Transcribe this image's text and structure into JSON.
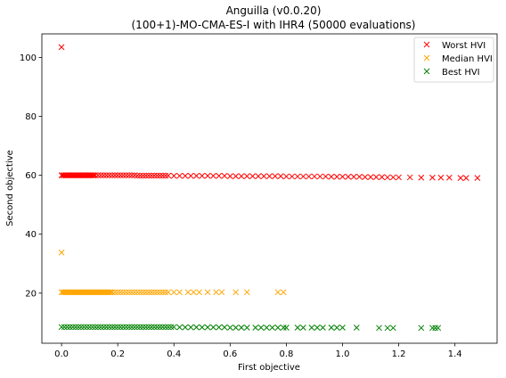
{
  "chart_data": {
    "type": "scatter",
    "title": "Anguilla (v0.0.20)",
    "subtitle": "(100+1)-MO-CMA-ES-I with IHR4 (50000 evaluations)",
    "xlabel": "First objective",
    "ylabel": "Second objective",
    "xlim": [
      -0.07,
      1.55
    ],
    "ylim": [
      3,
      108
    ],
    "xticks": [
      "0.0",
      "0.2",
      "0.4",
      "0.6",
      "0.8",
      "1.0",
      "1.2",
      "1.4"
    ],
    "yticks": [
      "20",
      "40",
      "60",
      "80",
      "100"
    ],
    "grid": false,
    "legend_position": "top-right",
    "marker": "x",
    "series": [
      {
        "name": "Worst HVI",
        "color": "#ff0000",
        "x": [
          0.0,
          0.0,
          0.005,
          0.01,
          0.015,
          0.02,
          0.025,
          0.03,
          0.035,
          0.04,
          0.045,
          0.05,
          0.055,
          0.06,
          0.065,
          0.07,
          0.075,
          0.08,
          0.085,
          0.09,
          0.095,
          0.1,
          0.105,
          0.11,
          0.115,
          0.12,
          0.13,
          0.14,
          0.15,
          0.16,
          0.17,
          0.18,
          0.19,
          0.2,
          0.21,
          0.22,
          0.23,
          0.24,
          0.25,
          0.26,
          0.27,
          0.28,
          0.29,
          0.3,
          0.31,
          0.32,
          0.33,
          0.34,
          0.35,
          0.36,
          0.37,
          0.38,
          0.4,
          0.42,
          0.44,
          0.46,
          0.48,
          0.5,
          0.52,
          0.54,
          0.56,
          0.58,
          0.6,
          0.62,
          0.64,
          0.66,
          0.68,
          0.7,
          0.72,
          0.74,
          0.76,
          0.78,
          0.8,
          0.82,
          0.84,
          0.86,
          0.88,
          0.9,
          0.92,
          0.94,
          0.96,
          0.98,
          1.0,
          1.02,
          1.04,
          1.06,
          1.08,
          1.1,
          1.12,
          1.14,
          1.16,
          1.18,
          1.2,
          1.24,
          1.28,
          1.32,
          1.35,
          1.38,
          1.42,
          1.44,
          1.48
        ],
        "y": [
          103.5,
          60.0,
          60.0,
          60.0,
          60.0,
          60.0,
          60.0,
          60.0,
          60.0,
          60.0,
          60.0,
          60.0,
          60.0,
          60.0,
          60.0,
          60.0,
          60.0,
          60.0,
          60.0,
          60.0,
          60.0,
          60.0,
          60.0,
          60.0,
          60.0,
          60.0,
          60.0,
          60.0,
          60.0,
          60.0,
          60.0,
          60.0,
          60.0,
          60.0,
          60.0,
          60.0,
          60.0,
          60.0,
          60.0,
          60.0,
          59.9,
          59.9,
          59.9,
          59.9,
          59.9,
          59.9,
          59.9,
          59.9,
          59.9,
          59.9,
          59.9,
          59.9,
          59.8,
          59.8,
          59.8,
          59.8,
          59.8,
          59.8,
          59.8,
          59.8,
          59.8,
          59.8,
          59.7,
          59.7,
          59.7,
          59.7,
          59.7,
          59.7,
          59.7,
          59.7,
          59.7,
          59.7,
          59.6,
          59.6,
          59.6,
          59.6,
          59.6,
          59.6,
          59.6,
          59.6,
          59.5,
          59.5,
          59.5,
          59.5,
          59.5,
          59.5,
          59.4,
          59.4,
          59.4,
          59.4,
          59.3,
          59.3,
          59.3,
          59.3,
          59.2,
          59.2,
          59.2,
          59.2,
          59.1,
          59.1,
          59.1
        ]
      },
      {
        "name": "Median HVI",
        "color": "#ffa500",
        "x": [
          0.0,
          0.0,
          0.005,
          0.01,
          0.015,
          0.02,
          0.025,
          0.03,
          0.035,
          0.04,
          0.045,
          0.05,
          0.055,
          0.06,
          0.065,
          0.07,
          0.075,
          0.08,
          0.085,
          0.09,
          0.095,
          0.1,
          0.105,
          0.11,
          0.115,
          0.12,
          0.125,
          0.13,
          0.135,
          0.14,
          0.145,
          0.15,
          0.155,
          0.16,
          0.165,
          0.17,
          0.175,
          0.18,
          0.19,
          0.2,
          0.21,
          0.22,
          0.23,
          0.24,
          0.25,
          0.26,
          0.27,
          0.28,
          0.29,
          0.3,
          0.31,
          0.32,
          0.33,
          0.34,
          0.35,
          0.36,
          0.37,
          0.38,
          0.4,
          0.42,
          0.45,
          0.47,
          0.49,
          0.52,
          0.55,
          0.57,
          0.62,
          0.66,
          0.77,
          0.79
        ],
        "y": [
          33.8,
          20.3,
          20.3,
          20.3,
          20.3,
          20.3,
          20.3,
          20.3,
          20.3,
          20.3,
          20.3,
          20.3,
          20.3,
          20.3,
          20.3,
          20.3,
          20.3,
          20.3,
          20.3,
          20.3,
          20.3,
          20.3,
          20.3,
          20.3,
          20.3,
          20.3,
          20.3,
          20.3,
          20.3,
          20.3,
          20.3,
          20.3,
          20.3,
          20.3,
          20.3,
          20.3,
          20.3,
          20.3,
          20.3,
          20.3,
          20.3,
          20.3,
          20.3,
          20.3,
          20.3,
          20.3,
          20.3,
          20.3,
          20.3,
          20.3,
          20.3,
          20.3,
          20.3,
          20.3,
          20.3,
          20.3,
          20.3,
          20.3,
          20.3,
          20.3,
          20.3,
          20.3,
          20.3,
          20.3,
          20.3,
          20.3,
          20.3,
          20.3,
          20.3,
          20.3
        ]
      },
      {
        "name": "Best HVI",
        "color": "#008000",
        "x": [
          0.0,
          0.01,
          0.02,
          0.03,
          0.04,
          0.05,
          0.06,
          0.07,
          0.08,
          0.09,
          0.1,
          0.11,
          0.12,
          0.13,
          0.14,
          0.15,
          0.16,
          0.17,
          0.18,
          0.19,
          0.2,
          0.21,
          0.22,
          0.23,
          0.24,
          0.25,
          0.26,
          0.27,
          0.28,
          0.29,
          0.3,
          0.31,
          0.32,
          0.33,
          0.34,
          0.35,
          0.36,
          0.37,
          0.38,
          0.39,
          0.4,
          0.42,
          0.44,
          0.46,
          0.48,
          0.5,
          0.52,
          0.54,
          0.56,
          0.58,
          0.6,
          0.62,
          0.64,
          0.66,
          0.69,
          0.71,
          0.73,
          0.75,
          0.77,
          0.79,
          0.8,
          0.84,
          0.86,
          0.89,
          0.91,
          0.93,
          0.96,
          0.98,
          1.0,
          1.05,
          1.13,
          1.16,
          1.18,
          1.28,
          1.32,
          1.33,
          1.34
        ],
        "y": [
          8.5,
          8.5,
          8.5,
          8.5,
          8.5,
          8.5,
          8.5,
          8.5,
          8.5,
          8.5,
          8.5,
          8.5,
          8.5,
          8.5,
          8.5,
          8.5,
          8.5,
          8.5,
          8.5,
          8.5,
          8.5,
          8.5,
          8.5,
          8.5,
          8.5,
          8.5,
          8.5,
          8.5,
          8.5,
          8.5,
          8.5,
          8.5,
          8.5,
          8.5,
          8.5,
          8.5,
          8.5,
          8.5,
          8.5,
          8.5,
          8.5,
          8.4,
          8.4,
          8.4,
          8.4,
          8.4,
          8.4,
          8.4,
          8.4,
          8.4,
          8.3,
          8.3,
          8.3,
          8.3,
          8.3,
          8.3,
          8.3,
          8.3,
          8.3,
          8.3,
          8.3,
          8.3,
          8.3,
          8.3,
          8.3,
          8.3,
          8.3,
          8.3,
          8.3,
          8.3,
          8.2,
          8.2,
          8.2,
          8.2,
          8.2,
          8.2,
          8.2
        ]
      }
    ]
  }
}
